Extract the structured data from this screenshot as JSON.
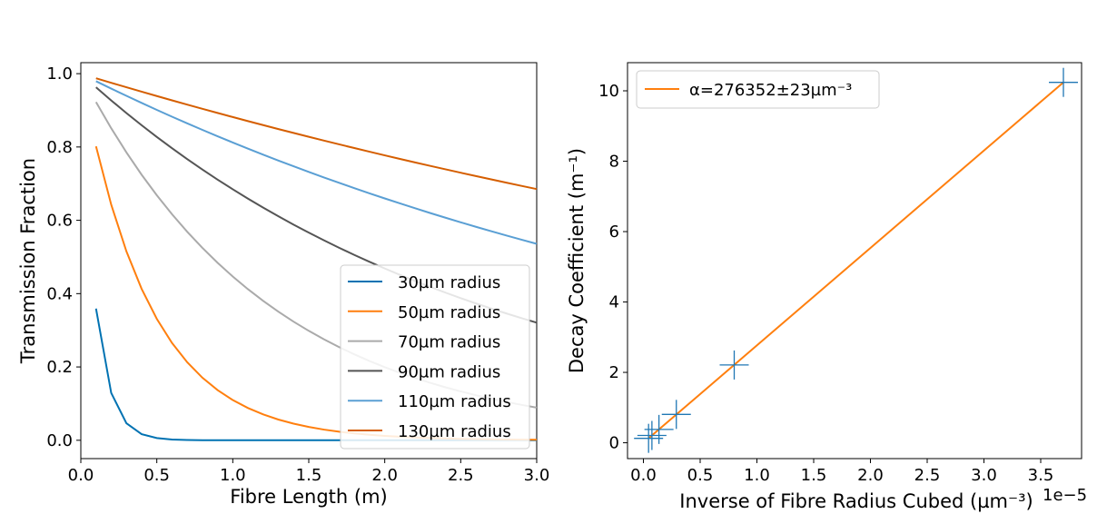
{
  "chart_data": [
    {
      "type": "line",
      "xlabel": "Fibre Length (m)",
      "ylabel": "Transmission Fraction",
      "xlim": [
        0.0,
        3.0
      ],
      "ylim": [
        -0.05,
        1.03
      ],
      "xticks": [
        "0.0",
        "0.5",
        "1.0",
        "1.5",
        "2.0",
        "2.5",
        "3.0"
      ],
      "yticks": [
        "0.0",
        "0.2",
        "0.4",
        "0.6",
        "0.8",
        "1.0"
      ],
      "legend_position": "lower-right",
      "x": [
        0.1,
        0.2,
        0.3,
        0.4,
        0.5,
        0.6,
        0.7,
        0.8,
        0.9,
        1.0,
        1.1,
        1.2,
        1.3,
        1.4,
        1.5,
        1.6,
        1.7,
        1.8,
        1.9,
        2.0,
        2.1,
        2.2,
        2.3,
        2.4,
        2.5,
        2.6,
        2.7,
        2.8,
        2.9,
        3.0
      ],
      "series": [
        {
          "name": "30µm radius",
          "color": "#0072b2",
          "decay": 10.24
        },
        {
          "name": "50µm radius",
          "color": "#ff7f0e",
          "decay": 2.21
        },
        {
          "name": "70µm radius",
          "color": "#aaaaaa",
          "decay": 0.806
        },
        {
          "name": "90µm radius",
          "color": "#555555",
          "decay": 0.379
        },
        {
          "name": "110µm radius",
          "color": "#5a9fd4",
          "decay": 0.208
        },
        {
          "name": "130µm radius",
          "color": "#d55e00",
          "decay": 0.126
        }
      ]
    },
    {
      "type": "scatter",
      "xlabel": "Inverse of Fibre Radius Cubed (µm⁻³)",
      "x_offset_label": "1e−5",
      "ylabel": "Decay Coefficient (m⁻¹)",
      "xlim": [
        -0.14,
        3.86
      ],
      "ylim": [
        -0.45,
        10.8
      ],
      "xticks": [
        "0.0",
        "0.5",
        "1.0",
        "1.5",
        "2.0",
        "2.5",
        "3.0",
        "3.5"
      ],
      "yticks": [
        "0",
        "2",
        "4",
        "6",
        "8",
        "10"
      ],
      "legend_position": "top-left",
      "points": {
        "color": "#1f77b4",
        "x": [
          3.7,
          0.8,
          0.29,
          0.137,
          0.075,
          0.0455
        ],
        "y": [
          10.24,
          2.21,
          0.806,
          0.379,
          0.208,
          0.126
        ]
      },
      "fit": {
        "name": "α=276352±23µm⁻³",
        "color": "#ff7f0e",
        "x": [
          0.0455,
          3.7
        ],
        "y": [
          0.126,
          10.24
        ]
      }
    }
  ]
}
